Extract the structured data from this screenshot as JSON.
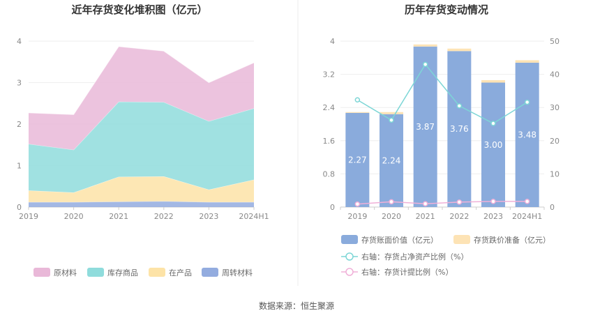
{
  "left_chart": {
    "title": "近年存货变化堆积图（亿元）"
  },
  "right_chart": {
    "title": "历年存货变动情况"
  },
  "source_text": "数据来源：恒生聚源",
  "colors": {
    "raw_materials": "#e9b8d8",
    "stock_goods": "#8fdcdc",
    "wip": "#fde3a7",
    "revolving": "#93acdf",
    "book_value_bar": "#8aabdc",
    "impairment_bar": "#fde3b5",
    "net_asset_ratio": "#7dd6d6",
    "provision_ratio": "#f0b0d8"
  },
  "chart_data": [
    {
      "type": "area",
      "stacked": true,
      "categories": [
        "2019",
        "2020",
        "2021",
        "2022",
        "2023",
        "2024H1"
      ],
      "ylim": [
        0,
        4
      ],
      "yticks": [
        "0",
        "1",
        "2",
        "3",
        "4"
      ],
      "grid": true,
      "legend_position": "bottom",
      "series": [
        {
          "name": "周转材料",
          "key": "revolving",
          "values": [
            0.12,
            0.12,
            0.13,
            0.14,
            0.12,
            0.12
          ]
        },
        {
          "name": "在产品",
          "key": "wip",
          "values": [
            0.28,
            0.23,
            0.6,
            0.6,
            0.3,
            0.54
          ]
        },
        {
          "name": "库存商品",
          "key": "stock_goods",
          "values": [
            1.12,
            1.03,
            1.81,
            1.79,
            1.65,
            1.72
          ]
        },
        {
          "name": "原材料",
          "key": "raw_materials",
          "values": [
            0.75,
            0.85,
            1.33,
            1.23,
            0.93,
            1.1
          ]
        }
      ],
      "legend_order": [
        "原材料",
        "库存商品",
        "在产品",
        "周转材料"
      ]
    },
    {
      "type": "bar",
      "stacked": true,
      "categories": [
        "2019",
        "2020",
        "2021",
        "2022",
        "2023",
        "2024H1"
      ],
      "ylim_left": [
        0,
        4
      ],
      "yticks_left": [
        "0",
        "0.8",
        "1.6",
        "2.4",
        "3.2",
        "4"
      ],
      "ylim_right": [
        0,
        50
      ],
      "yticks_right": [
        "0",
        "10",
        "20",
        "30",
        "40",
        "50"
      ],
      "grid": true,
      "legend_position": "bottom",
      "bars": [
        {
          "name": "存货账面价值（亿元）",
          "key": "book_value_bar",
          "values": [
            2.27,
            2.24,
            3.87,
            3.76,
            3.0,
            3.48
          ],
          "labels": [
            "2.27",
            "2.24",
            "3.87",
            "3.76",
            "3.00",
            "3.48"
          ]
        },
        {
          "name": "存货跌价准备（亿元）",
          "key": "impairment_bar",
          "values": [
            0.02,
            0.05,
            0.05,
            0.06,
            0.06,
            0.06
          ]
        }
      ],
      "lines": [
        {
          "name": "右轴：存货占净资产比例（%）",
          "key": "net_asset_ratio",
          "values": [
            32.3,
            26.2,
            43.0,
            30.5,
            25.2,
            31.6
          ]
        },
        {
          "name": "右轴：存货计提比例（%）",
          "key": "provision_ratio",
          "values": [
            0.9,
            1.6,
            1.0,
            1.5,
            1.7,
            1.7
          ]
        }
      ]
    }
  ]
}
